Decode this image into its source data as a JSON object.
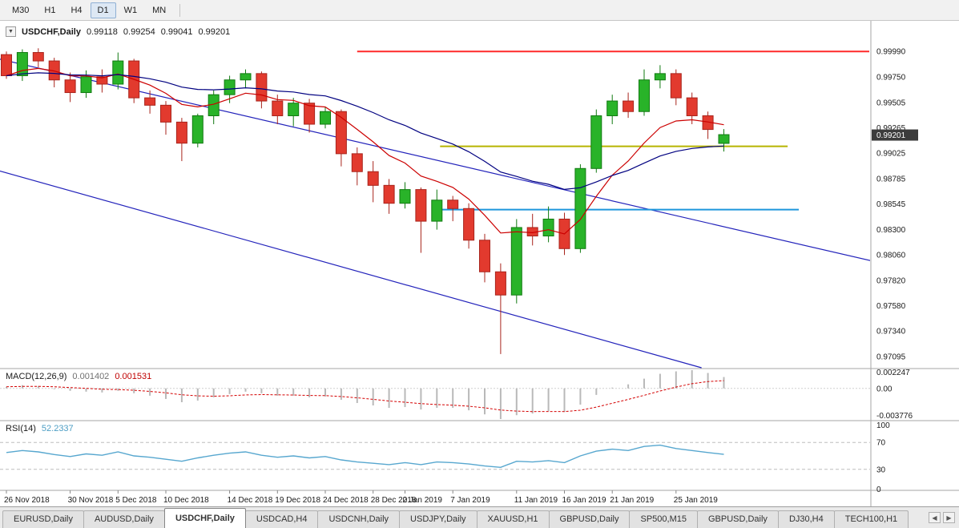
{
  "toolbar": {
    "timeframes": [
      {
        "label": "M30",
        "active": false
      },
      {
        "label": "H1",
        "active": false
      },
      {
        "label": "H4",
        "active": false
      },
      {
        "label": "D1",
        "active": true
      },
      {
        "label": "W1",
        "active": false
      },
      {
        "label": "MN",
        "active": false
      }
    ]
  },
  "chart_header": {
    "collapse_icon": "▼",
    "title": "USDCHF,Daily",
    "open": "0.99118",
    "high": "0.99254",
    "low": "0.99041",
    "close": "0.99201"
  },
  "colors": {
    "bull": "#29b329",
    "bear": "#e23a2e",
    "bull_border": "#117a11",
    "bear_border": "#a8241c",
    "ma_fast": "#cc0000",
    "ma_slow": "#000080",
    "channel": "#2323bb",
    "hline_red": "#ff2a2a",
    "hline_yellow": "#b6b400",
    "hline_blue": "#1e96dc",
    "macd_bar": "#b9b9b9",
    "macd_signal": "#d40000",
    "rsi_line": "#57a7cf"
  },
  "chart_data": {
    "type": "candlestick",
    "symbol": "USDCHF",
    "timeframe": "Daily",
    "ohlc_current": {
      "open": 0.99118,
      "high": 0.99254,
      "low": 0.99041,
      "close": 0.99201
    },
    "price_axis": {
      "range": [
        0.9699,
        1.0025
      ],
      "current_price": {
        "value": 0.99201,
        "text": "0.99201"
      },
      "labels": [
        {
          "price": 0.9999,
          "text": "0.99990"
        },
        {
          "price": 0.9975,
          "text": "0.99750"
        },
        {
          "price": 0.99505,
          "text": "0.99505"
        },
        {
          "price": 0.99265,
          "text": "0.99265"
        },
        {
          "price": 0.99025,
          "text": "0.99025"
        },
        {
          "price": 0.98785,
          "text": "0.98785"
        },
        {
          "price": 0.98545,
          "text": "0.98545"
        },
        {
          "price": 0.983,
          "text": "0.98300"
        },
        {
          "price": 0.9806,
          "text": "0.98060"
        },
        {
          "price": 0.9782,
          "text": "0.97820"
        },
        {
          "price": 0.9758,
          "text": "0.97580"
        },
        {
          "price": 0.9734,
          "text": "0.97340"
        },
        {
          "price": 0.97095,
          "text": "0.97095"
        }
      ]
    },
    "candles": {
      "dates": [
        "26 Nov 2018",
        "27 Nov 2018",
        "28 Nov 2018",
        "29 Nov 2018",
        "30 Nov 2018",
        "3 Dec 2018",
        "4 Dec 2018",
        "5 Dec 2018",
        "6 Dec 2018",
        "7 Dec 2018",
        "10 Dec 2018",
        "11 Dec 2018",
        "12 Dec 2018",
        "13 Dec 2018",
        "14 Dec 2018",
        "17 Dec 2018",
        "18 Dec 2018",
        "19 Dec 2018",
        "20 Dec 2018",
        "21 Dec 2018",
        "24 Dec 2018",
        "26 Dec 2018",
        "27 Dec 2018",
        "28 Dec 2018",
        "31 Dec 2018",
        "2 Jan 2019",
        "3 Jan 2019",
        "4 Jan 2019",
        "7 Jan 2019",
        "8 Jan 2019",
        "9 Jan 2019",
        "10 Jan 2019",
        "11 Jan 2019",
        "14 Jan 2019",
        "15 Jan 2019",
        "16 Jan 2019",
        "17 Jan 2019",
        "18 Jan 2019",
        "21 Jan 2019",
        "22 Jan 2019",
        "23 Jan 2019",
        "24 Jan 2019",
        "25 Jan 2019",
        "28 Jan 2019",
        "29 Jan 2019",
        "30 Jan 2019"
      ],
      "open": [
        0.9996,
        0.9976,
        0.9998,
        0.999,
        0.9972,
        0.996,
        0.9975,
        0.9968,
        0.999,
        0.9955,
        0.9948,
        0.9932,
        0.9912,
        0.9938,
        0.9958,
        0.9972,
        0.9978,
        0.9952,
        0.9938,
        0.995,
        0.993,
        0.9942,
        0.9902,
        0.9885,
        0.9872,
        0.9855,
        0.9868,
        0.9838,
        0.9858,
        0.985,
        0.982,
        0.979,
        0.9768,
        0.9832,
        0.9824,
        0.984,
        0.9812,
        0.9888,
        0.9938,
        0.9952,
        0.9942,
        0.9972,
        0.9978,
        0.9955,
        0.9938,
        0.99118
      ],
      "high": [
        0.9999,
        1.0001,
        1.0002,
        0.9993,
        0.9979,
        0.9981,
        0.9982,
        0.9998,
        0.9992,
        0.9962,
        0.9952,
        0.9936,
        0.994,
        0.9962,
        0.9976,
        0.9982,
        0.998,
        0.9958,
        0.9955,
        0.9954,
        0.9946,
        0.9944,
        0.9908,
        0.9895,
        0.9878,
        0.9875,
        0.987,
        0.9868,
        0.9862,
        0.9855,
        0.9826,
        0.9798,
        0.984,
        0.9845,
        0.9852,
        0.9846,
        0.9892,
        0.9944,
        0.9958,
        0.996,
        0.9982,
        0.9986,
        0.9982,
        0.996,
        0.9942,
        0.99254
      ],
      "low": [
        0.9973,
        0.9971,
        0.9984,
        0.9965,
        0.9951,
        0.9955,
        0.996,
        0.9963,
        0.995,
        0.994,
        0.992,
        0.9895,
        0.9908,
        0.993,
        0.995,
        0.9964,
        0.9945,
        0.993,
        0.9928,
        0.9922,
        0.9926,
        0.989,
        0.9872,
        0.9856,
        0.9845,
        0.985,
        0.9808,
        0.983,
        0.9838,
        0.9812,
        0.978,
        0.9712,
        0.976,
        0.9815,
        0.9818,
        0.9806,
        0.9808,
        0.9884,
        0.993,
        0.9936,
        0.9938,
        0.9964,
        0.9948,
        0.993,
        0.9916,
        0.99041
      ],
      "close": [
        0.9976,
        0.9998,
        0.999,
        0.9972,
        0.996,
        0.9975,
        0.9968,
        0.999,
        0.9955,
        0.9948,
        0.9932,
        0.9912,
        0.9938,
        0.9958,
        0.9972,
        0.9978,
        0.9952,
        0.9938,
        0.995,
        0.993,
        0.9942,
        0.9902,
        0.9885,
        0.9872,
        0.9855,
        0.9868,
        0.9838,
        0.9858,
        0.985,
        0.982,
        0.979,
        0.9768,
        0.9832,
        0.9824,
        0.984,
        0.9812,
        0.9888,
        0.9938,
        0.9952,
        0.9942,
        0.9972,
        0.9978,
        0.9955,
        0.9938,
        0.9925,
        0.99201
      ]
    },
    "date_ticks": [
      {
        "index": 0,
        "label": "26 Nov 2018"
      },
      {
        "index": 4,
        "label": "30 Nov 2018"
      },
      {
        "index": 7,
        "label": "5 Dec 2018"
      },
      {
        "index": 10,
        "label": "10 Dec 2018"
      },
      {
        "index": 14,
        "label": "14 Dec 2018"
      },
      {
        "index": 17,
        "label": "19 Dec 2018"
      },
      {
        "index": 20,
        "label": "24 Dec 2018"
      },
      {
        "index": 23,
        "label": "28 Dec 2018"
      },
      {
        "index": 25,
        "label": "2 Jan 2019"
      },
      {
        "index": 28,
        "label": "7 Jan 2019"
      },
      {
        "index": 32,
        "label": "11 Jan 2019"
      },
      {
        "index": 35,
        "label": "16 Jan 2019"
      },
      {
        "index": 38,
        "label": "21 Jan 2019"
      },
      {
        "index": 42,
        "label": "25 Jan 2019"
      }
    ],
    "overlays": {
      "hlines": [
        {
          "name": "resistance-line-red",
          "price": 0.9999,
          "color_key": "hline_red",
          "i_start": 22,
          "i_end": "edge",
          "width": 2
        },
        {
          "name": "support-line-yellow",
          "price": 0.9909,
          "color_key": "hline_yellow",
          "i_start": 27.2,
          "i_end": 49,
          "width": 2
        },
        {
          "name": "support-line-blue",
          "price": 0.9849,
          "color_key": "hline_blue",
          "i_start": 27,
          "i_end": 49.7,
          "width": 2
        }
      ],
      "trendlines": [
        {
          "name": "channel-upper-line",
          "i1": -0.5,
          "p1": 0.9992,
          "i2": 55.8,
          "p2": 0.9795,
          "color_key": "channel",
          "width": 1.2
        },
        {
          "name": "channel-lower-line",
          "i1": -0.5,
          "p1": 0.9886,
          "i2": 43.6,
          "p2": 0.9699,
          "color_key": "channel",
          "width": 1.2
        }
      ],
      "moving_averages": [
        {
          "name": "ma-fast-red",
          "period": 8,
          "color_key": "ma_fast",
          "width": 1.2
        },
        {
          "name": "ma-slow-blue",
          "period": 24,
          "color_key": "ma_slow",
          "width": 1.2
        }
      ]
    },
    "macd": {
      "label": "MACD(12,26,9)",
      "value": "0.001402",
      "signal_value": "0.001531",
      "range": [
        -0.003776,
        0.002247
      ],
      "axis": [
        {
          "v": 0.002247,
          "text": "0.002247"
        },
        {
          "v": 0,
          "text": "0.00"
        },
        {
          "v": -0.003776,
          "text": "-0.003776"
        }
      ],
      "histogram": [
        0.0002,
        0.0004,
        0.0003,
        0.0,
        -0.0003,
        -0.0004,
        -0.0005,
        -0.0003,
        -0.0006,
        -0.0009,
        -0.0013,
        -0.0017,
        -0.0015,
        -0.0011,
        -0.0007,
        -0.0004,
        -0.0006,
        -0.0009,
        -0.0009,
        -0.0011,
        -0.001,
        -0.0014,
        -0.0018,
        -0.0021,
        -0.0024,
        -0.0023,
        -0.0026,
        -0.0024,
        -0.0024,
        -0.0027,
        -0.0032,
        -0.003776,
        -0.0033,
        -0.0031,
        -0.0028,
        -0.0029,
        -0.002,
        -0.0008,
        0.0001,
        0.0005,
        0.0012,
        0.0018,
        0.0021,
        0.002247,
        0.0019,
        0.001402
      ]
    },
    "rsi": {
      "label": "RSI(14)",
      "value": "52.2337",
      "range": [
        0,
        100
      ],
      "levels": [
        70,
        30
      ],
      "axis": [
        {
          "v": 100,
          "text": "100"
        },
        {
          "v": 70,
          "text": "70"
        },
        {
          "v": 30,
          "text": "30"
        },
        {
          "v": 0,
          "text": "0"
        }
      ],
      "values": [
        55,
        58,
        56,
        52,
        49,
        53,
        51,
        56,
        50,
        48,
        45,
        42,
        47,
        51,
        54,
        56,
        51,
        48,
        50,
        47,
        49,
        44,
        41,
        39,
        37,
        40,
        37,
        41,
        40,
        38,
        35,
        33,
        42,
        41,
        43,
        40,
        50,
        57,
        60,
        58,
        64,
        66,
        61,
        58,
        55,
        52.23
      ]
    }
  },
  "tabs": {
    "scroll_left": "◀",
    "scroll_right": "▶",
    "items": [
      {
        "label": "EURUSD,Daily",
        "active": false
      },
      {
        "label": "AUDUSD,Daily",
        "active": false
      },
      {
        "label": "USDCHF,Daily",
        "active": true
      },
      {
        "label": "USDCAD,H4",
        "active": false
      },
      {
        "label": "USDCNH,Daily",
        "active": false
      },
      {
        "label": "USDJPY,Daily",
        "active": false
      },
      {
        "label": "XAUUSD,H1",
        "active": false
      },
      {
        "label": "GBPUSD,Daily",
        "active": false
      },
      {
        "label": "SP500,M15",
        "active": false
      },
      {
        "label": "GBPUSD,Daily",
        "active": false
      },
      {
        "label": "DJ30,H4",
        "active": false
      },
      {
        "label": "TECH100,H1",
        "active": false
      }
    ]
  }
}
